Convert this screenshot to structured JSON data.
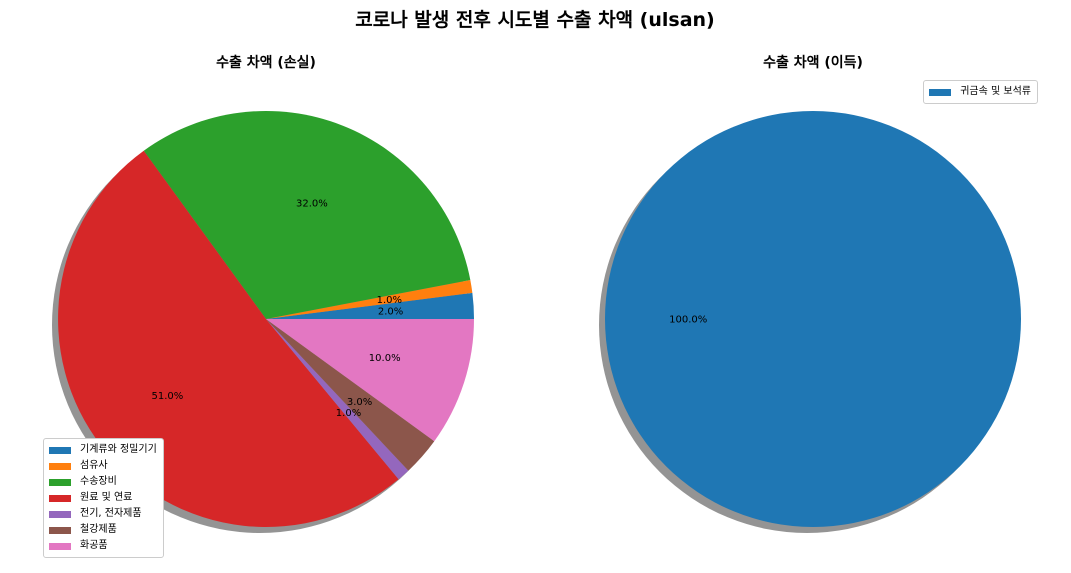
{
  "suptitle": "코로나 발생 전후 시도별 수출 차액 (ulsan)",
  "chart_data": [
    {
      "type": "pie",
      "title": "수출 차액 (손실)",
      "labels": [
        "기계류와 정밀기기",
        "섬유사",
        "수송장비",
        "원료 및 연료",
        "전기, 전자제품",
        "철강제품",
        "화공품"
      ],
      "values": [
        2.0,
        1.0,
        32.0,
        51.0,
        1.0,
        3.0,
        10.0
      ],
      "value_labels": [
        "2.0%",
        "1.0%",
        "32.0%",
        "51.0%",
        "1.0%",
        "3.0%",
        "10.0%"
      ],
      "colors": [
        "#1f77b4",
        "#ff7f0e",
        "#2ca02c",
        "#d62728",
        "#9467bd",
        "#8c564b",
        "#e377c2"
      ],
      "start_angle_deg": 0,
      "direction": "counterclockwise",
      "shadow": true,
      "legend_position": "lower-left"
    },
    {
      "type": "pie",
      "title": "수출 차액 (이득)",
      "labels": [
        "귀금속 및 보석류"
      ],
      "values": [
        100.0
      ],
      "value_labels": [
        "100.0%"
      ],
      "colors": [
        "#1f77b4"
      ],
      "start_angle_deg": 0,
      "direction": "counterclockwise",
      "shadow": true,
      "legend_position": "upper-right"
    }
  ]
}
